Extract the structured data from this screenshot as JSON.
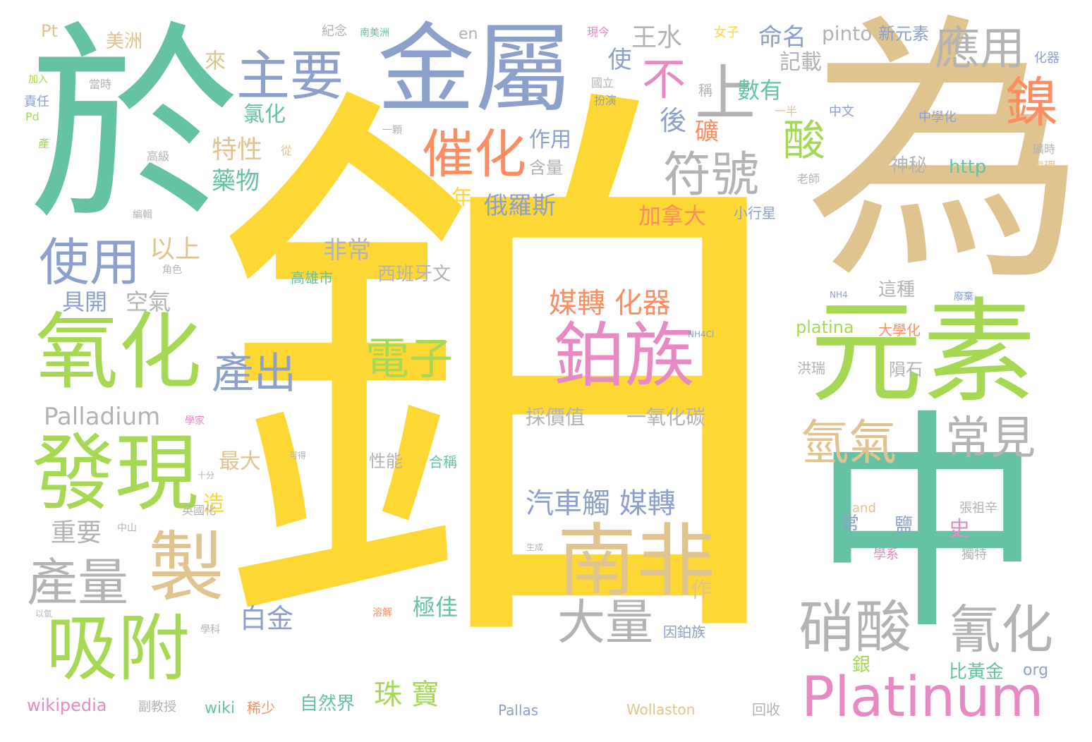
{
  "colors": {
    "yellow": "#fdd835",
    "teal": "#66c2a5",
    "tan": "#e0c48f",
    "blue": "#8da0cb",
    "pink": "#e78ac3",
    "green": "#a6d854",
    "orange": "#fc8d62",
    "gray": "#b3b3b3",
    "lightyellow": "#ffd92f"
  },
  "words": [
    "鉑",
    "為",
    "於",
    "中",
    "金屬",
    "元素",
    "氧化",
    "發現",
    "南非",
    "鉑族",
    "吸附",
    "製",
    "產量",
    "硝酸",
    "氰化",
    "Platinum",
    "上",
    "鎳",
    "主要",
    "催化",
    "使用",
    "應用",
    "符號",
    "酸",
    "大量",
    "氫氣",
    "常見",
    "電子",
    "產出",
    "不",
    "珠 寶",
    "媒轉 化器",
    "汽車觸 媒轉",
    "特性",
    "藥物",
    "王水",
    "命名",
    "數有",
    "記載",
    "pinto",
    "新元素",
    "美洲",
    "Palladium",
    "白金",
    "重要",
    "以上",
    "具開",
    "空氣",
    "俄羅斯",
    "非常",
    "加拿大",
    "極佳",
    "作用",
    "含量",
    "年",
    "後",
    "礦",
    "氯化",
    "使",
    "來",
    "最大",
    "造",
    "自然界",
    "比黃金",
    "一氧化碳",
    "採價值",
    "性能",
    "合稱",
    "西班牙文",
    "高雄市",
    "platina",
    "這種",
    "隕石",
    "大學化",
    "洪瑞",
    "神秘",
    "http",
    "小行星",
    "wikipedia",
    "wiki",
    "稀少",
    "Pallas",
    "Wollaston",
    "回收",
    "org",
    "銀",
    "因鉑族",
    "學系",
    "張祖辛",
    "獨特",
    "鹽",
    "常",
    "史",
    "and",
    "Pt",
    "en",
    "紀念",
    "南美洲",
    "現今",
    "國立",
    "扮演",
    "女子",
    "中文",
    "中學化",
    "化器",
    "責任",
    "加入",
    "當時",
    "Pd",
    "產",
    "一半",
    "一顆",
    "高級",
    "從",
    "老師",
    "處理",
    "礦時",
    "廢棄",
    "英國化",
    "角色",
    "編輯",
    "中山",
    "學家",
    "副教授",
    "學科",
    "NH4",
    "NH4Cl",
    "作",
    "可得",
    "稱",
    "溶解",
    "生成",
    "十分",
    "以氫"
  ]
}
